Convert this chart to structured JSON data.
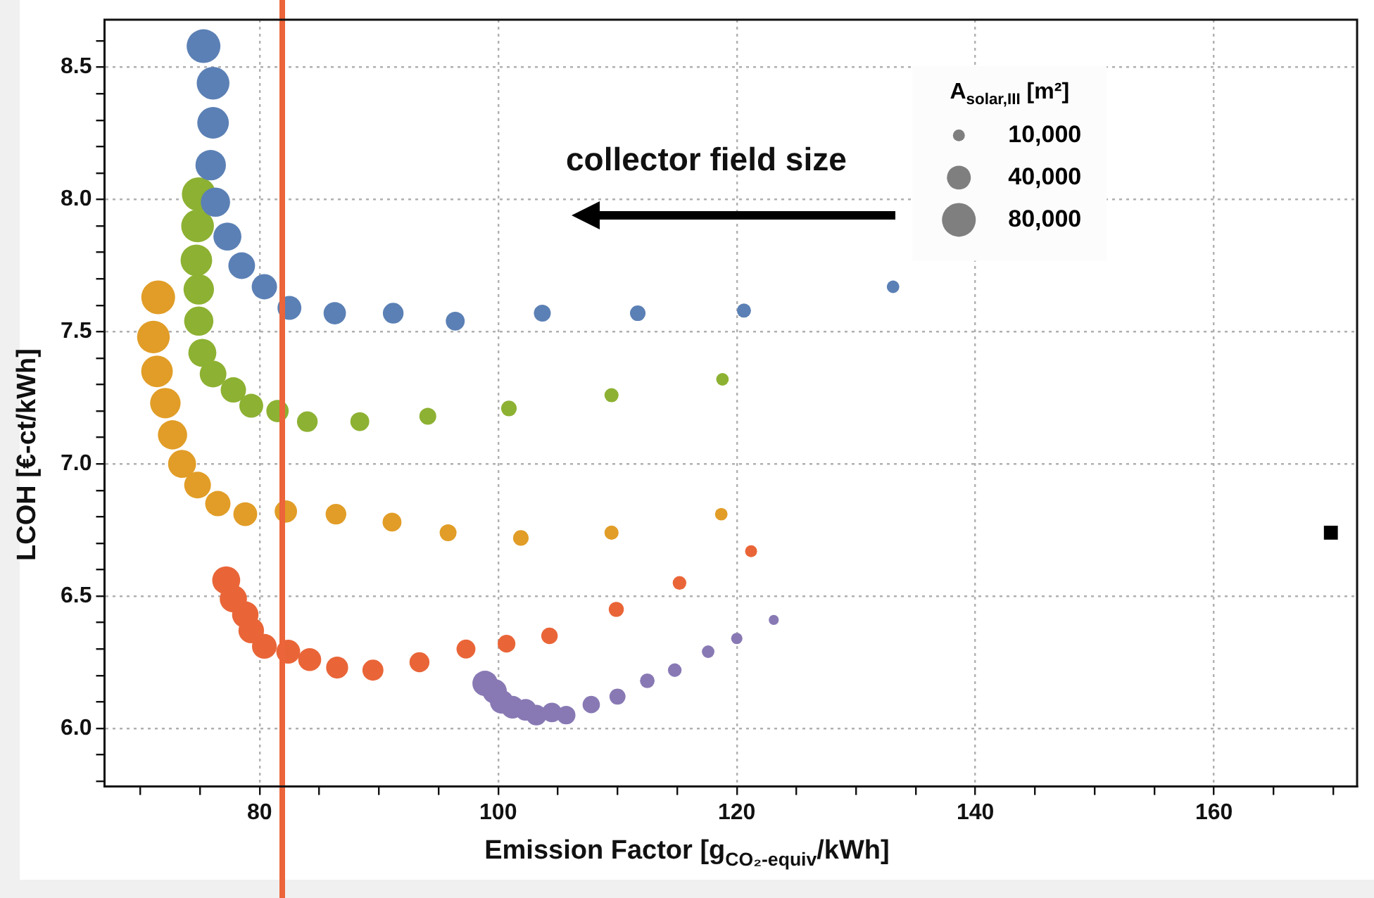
{
  "chart_data": {
    "type": "bubble",
    "xlabel": "Emission Factor [g$_{CO₂-equiv}$/kWh]",
    "ylabel": "LCOH [€-ct/kWh]",
    "legend_title": "A$_{solar,III}$ [m²]",
    "size_legend": [
      {
        "value": 10000,
        "label": "10,000"
      },
      {
        "value": 40000,
        "label": "40,000"
      },
      {
        "value": 80000,
        "label": "80,000"
      }
    ],
    "xlim": [
      67,
      172
    ],
    "ylim": [
      5.78,
      8.68
    ],
    "xticks": [
      {
        "value": 70,
        "label": null
      },
      {
        "value": 75,
        "label": null
      },
      80,
      {
        "value": 85,
        "label": null
      },
      {
        "value": 90,
        "label": null
      },
      {
        "value": 95,
        "label": null
      },
      100,
      {
        "value": 105,
        "label": null
      },
      {
        "value": 110,
        "label": null
      },
      {
        "value": 115,
        "label": null
      },
      120,
      {
        "value": 125,
        "label": null
      },
      {
        "value": 130,
        "label": null
      },
      {
        "value": 135,
        "label": null
      },
      140,
      {
        "value": 145,
        "label": null
      },
      {
        "value": 150,
        "label": null
      },
      {
        "value": 155,
        "label": null
      },
      160,
      {
        "value": 165,
        "label": null
      },
      {
        "value": 170,
        "label": null
      }
    ],
    "yticks": [
      {
        "value": 5.8,
        "label": null
      },
      {
        "value": 5.9,
        "label": null
      },
      {
        "value": 6.0,
        "label": "6.0"
      },
      {
        "value": 6.1,
        "label": null
      },
      {
        "value": 6.2,
        "label": null
      },
      {
        "value": 6.3,
        "label": null
      },
      {
        "value": 6.4,
        "label": null
      },
      {
        "value": 6.5,
        "label": "6.5"
      },
      {
        "value": 6.6,
        "label": null
      },
      {
        "value": 6.7,
        "label": null
      },
      {
        "value": 6.8,
        "label": null
      },
      {
        "value": 6.9,
        "label": null
      },
      {
        "value": 7.0,
        "label": "7.0"
      },
      {
        "value": 7.1,
        "label": null
      },
      {
        "value": 7.2,
        "label": null
      },
      {
        "value": 7.3,
        "label": null
      },
      {
        "value": 7.4,
        "label": null
      },
      {
        "value": 7.5,
        "label": "7.5"
      },
      {
        "value": 7.6,
        "label": null
      },
      {
        "value": 7.7,
        "label": null
      },
      {
        "value": 7.8,
        "label": null
      },
      {
        "value": 7.9,
        "label": null
      },
      {
        "value": 8.0,
        "label": "8.0"
      },
      {
        "value": 8.1,
        "label": null
      },
      {
        "value": 8.2,
        "label": null
      },
      {
        "value": 8.3,
        "label": null
      },
      {
        "value": 8.4,
        "label": null
      },
      {
        "value": 8.5,
        "label": "8.5"
      },
      {
        "value": 8.6,
        "label": null
      }
    ],
    "grid": true,
    "ref_lines": [
      {
        "axis": "x",
        "value": 81.9,
        "color": "#ec6439"
      }
    ],
    "annotations": [
      "collector field size"
    ],
    "series": [
      {
        "color": "#5b80b5",
        "x": [
          75.3,
          76.1,
          76.1,
          75.9,
          76.3,
          77.3,
          78.5,
          80.4,
          82.5,
          86.3,
          91.2,
          96.4,
          103.7,
          111.7,
          120.6,
          133.1
        ],
        "values": [
          8.58,
          8.44,
          8.29,
          8.13,
          7.99,
          7.86,
          7.75,
          7.67,
          7.59,
          7.57,
          7.57,
          7.54,
          7.57,
          7.57,
          7.58,
          7.67
        ],
        "sizes": [
          80000,
          75000,
          70000,
          65000,
          60000,
          55000,
          50000,
          45000,
          40000,
          35000,
          30000,
          25000,
          20000,
          17000,
          14000,
          11000
        ]
      },
      {
        "color": "#8db132",
        "x": [
          74.9,
          74.8,
          74.7,
          74.9,
          74.9,
          75.2,
          76.1,
          77.8,
          79.3,
          81.5,
          84.0,
          88.4,
          94.1,
          100.9,
          109.5,
          118.8
        ],
        "values": [
          8.02,
          7.9,
          7.77,
          7.66,
          7.54,
          7.42,
          7.34,
          7.28,
          7.22,
          7.2,
          7.16,
          7.16,
          7.18,
          7.21,
          7.26,
          7.32
        ],
        "sizes": [
          80000,
          75000,
          70000,
          65000,
          60000,
          55000,
          50000,
          45000,
          40000,
          35000,
          30000,
          25000,
          20000,
          17000,
          14000,
          11000
        ]
      },
      {
        "color": "#e19d27",
        "x": [
          71.5,
          71.1,
          71.4,
          72.1,
          72.7,
          73.5,
          74.8,
          76.5,
          78.8,
          82.2,
          86.4,
          91.1,
          95.8,
          101.9,
          109.5,
          118.7
        ],
        "values": [
          7.63,
          7.48,
          7.35,
          7.23,
          7.11,
          7.0,
          6.92,
          6.85,
          6.81,
          6.82,
          6.81,
          6.78,
          6.74,
          6.72,
          6.74,
          6.81
        ],
        "sizes": [
          80000,
          75000,
          70000,
          65000,
          60000,
          55000,
          50000,
          45000,
          40000,
          35000,
          30000,
          25000,
          20000,
          17000,
          14000,
          11000
        ]
      },
      {
        "color": "#e96538",
        "x": [
          77.2,
          77.8,
          78.8,
          79.3,
          80.4,
          82.4,
          84.2,
          86.5,
          89.5,
          93.4,
          97.3,
          100.7,
          104.3,
          109.9,
          115.2,
          121.2
        ],
        "values": [
          6.56,
          6.49,
          6.43,
          6.37,
          6.31,
          6.29,
          6.26,
          6.23,
          6.22,
          6.25,
          6.3,
          6.32,
          6.35,
          6.45,
          6.55,
          6.67
        ],
        "sizes": [
          55000,
          52000,
          49000,
          46000,
          43000,
          40000,
          37000,
          34000,
          31000,
          28000,
          25000,
          22000,
          19000,
          16000,
          13000,
          10000
        ]
      },
      {
        "color": "#8879b4",
        "x": [
          98.9,
          99.7,
          100.3,
          101.2,
          102.3,
          103.2,
          104.5,
          105.7,
          107.8,
          110.0,
          112.5,
          114.8,
          117.6,
          120.0,
          123.1
        ],
        "values": [
          6.17,
          6.14,
          6.1,
          6.08,
          6.07,
          6.05,
          6.06,
          6.05,
          6.09,
          6.12,
          6.18,
          6.22,
          6.29,
          6.34,
          6.41
        ],
        "sizes": [
          45000,
          42000,
          39000,
          36000,
          33000,
          30000,
          27000,
          24000,
          21000,
          18000,
          15000,
          13000,
          11000,
          9000,
          7000
        ]
      },
      {
        "type": "scatter",
        "marker": "square",
        "color": "#000000",
        "x": [
          169.8
        ],
        "values": [
          6.74
        ]
      }
    ]
  }
}
